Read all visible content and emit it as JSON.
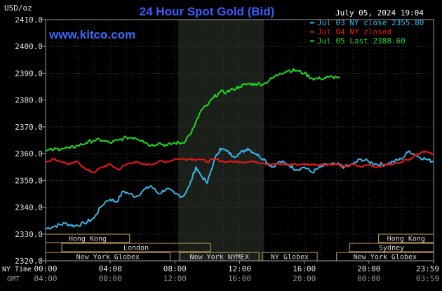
{
  "chart_data": {
    "type": "line",
    "title": "24 Hour Spot Gold (Bid)",
    "site": "www.kitco.com",
    "date_stamp": "July 05, 2024 19:04",
    "y_unit": "USD/oz",
    "ylim": [
      2320,
      2410
    ],
    "y_ticks": [
      "2410.0",
      "2400.0",
      "2390.0",
      "2380.0",
      "2370.0",
      "2360.0",
      "2350.0",
      "2340.0",
      "2330.0",
      "2320.0"
    ],
    "x_range_hours": [
      0,
      24
    ],
    "x_ticks_ny": [
      "00:00",
      "04:00",
      "08:00",
      "12:00",
      "16:00",
      "20:00",
      "23:59"
    ],
    "x_ticks_gmt": [
      "04:00",
      "08:00",
      "12:00",
      "16:00",
      "20:00",
      "00:00",
      "03:59"
    ],
    "x_tick_hours": [
      0,
      4,
      8,
      12,
      16,
      20,
      24
    ],
    "tz_labels": {
      "ny": "NY Time",
      "gmt": "GMT"
    },
    "grid": true,
    "legend_position": "top-right",
    "highlight_hours": [
      8.2,
      13.5
    ],
    "series": [
      {
        "name": "Jul 03 NY close 2355.80",
        "color": "#38b6e8",
        "x": [
          0,
          0.6,
          1.2,
          1.8,
          2.4,
          3.0,
          3.4,
          3.7,
          4.0,
          4.4,
          4.8,
          5.2,
          5.6,
          6.0,
          6.5,
          7.0,
          7.5,
          8.0,
          8.5,
          8.9,
          9.3,
          9.6,
          10.0,
          10.4,
          10.8,
          11.2,
          11.6,
          12.0,
          12.5,
          13.0,
          13.5,
          14.0,
          14.5,
          15.0,
          15.5,
          16.0,
          16.5,
          17.0,
          17.5,
          18.0,
          18.5,
          19.0,
          19.5,
          20.0,
          20.5,
          21.0,
          21.5,
          22.0,
          22.5,
          23.0,
          23.5,
          24.0
        ],
        "values": [
          2332,
          2333,
          2334,
          2333,
          2334,
          2336,
          2340,
          2342,
          2343,
          2342,
          2346,
          2345,
          2344,
          2346,
          2348,
          2345,
          2347,
          2345,
          2344,
          2348,
          2355,
          2352,
          2349,
          2357,
          2362,
          2361,
          2359,
          2360,
          2362,
          2360,
          2358,
          2355,
          2357,
          2356,
          2354,
          2355,
          2353,
          2355,
          2356,
          2356,
          2355,
          2356,
          2358,
          2357,
          2356,
          2356,
          2357,
          2358,
          2361,
          2359,
          2358,
          2357
        ]
      },
      {
        "name": "Jul 04 NY closed",
        "color": "#e81818",
        "x": [
          0,
          0.5,
          1.0,
          1.5,
          2.0,
          2.5,
          3.0,
          3.5,
          4.0,
          4.5,
          5.0,
          5.5,
          6.0,
          6.5,
          7.0,
          7.5,
          8.0,
          8.5,
          9.0,
          9.5,
          10.0,
          10.5,
          11.0,
          11.5,
          12.0,
          12.5,
          13.0,
          13.5,
          14.0,
          14.5,
          15.0,
          15.5,
          16.0,
          16.5,
          17.0,
          17.5,
          18.0,
          18.5,
          19.0,
          19.5,
          20.0,
          20.5,
          21.0,
          21.5,
          22.0,
          22.5,
          23.0,
          23.5,
          24.0
        ],
        "values": [
          2357,
          2358,
          2357,
          2356,
          2357,
          2354,
          2353,
          2355,
          2356,
          2354,
          2356,
          2357,
          2356,
          2356,
          2357,
          2357,
          2358,
          2358,
          2358,
          2358,
          2357,
          2358,
          2357,
          2357,
          2357,
          2357,
          2357,
          2356.5,
          2356,
          2356,
          2356,
          2356,
          2356,
          2356,
          2356,
          2356,
          2356,
          2355,
          2356,
          2355,
          2356,
          2355,
          2356,
          2356,
          2357,
          2358,
          2360,
          2361,
          2360
        ]
      },
      {
        "name": "Jul 05 Last 2388.60",
        "color": "#1ed81e",
        "x": [
          0,
          0.5,
          1.0,
          1.5,
          2.0,
          2.5,
          3.0,
          3.5,
          4.0,
          4.5,
          5.0,
          5.5,
          6.0,
          6.5,
          7.0,
          7.5,
          8.0,
          8.5,
          8.9,
          9.2,
          9.6,
          10.0,
          10.4,
          10.8,
          11.2,
          11.6,
          12.0,
          12.5,
          13.0,
          13.5,
          14.0,
          14.5,
          15.0,
          15.5,
          16.0,
          16.5,
          17.0,
          17.5,
          18.0,
          18.2
        ],
        "values": [
          2361,
          2361.5,
          2362,
          2362,
          2363,
          2364,
          2365,
          2365,
          2364,
          2365,
          2366,
          2366,
          2365,
          2363,
          2364,
          2363,
          2364,
          2364,
          2367,
          2370,
          2376,
          2378,
          2381,
          2383,
          2383,
          2384,
          2385,
          2386,
          2386,
          2386,
          2388,
          2390,
          2391,
          2391,
          2390,
          2388,
          2388,
          2388.5,
          2388.6,
          2388.6
        ]
      }
    ],
    "sessions": [
      {
        "label": "Hong Kong",
        "start": 0,
        "end": 5.2,
        "row": 0
      },
      {
        "label": "London",
        "start": 1.0,
        "end": 10.2,
        "row": 1
      },
      {
        "label": "New York Globex",
        "start": 0,
        "end": 7.7,
        "row": 2
      },
      {
        "label": "New York NYMEX",
        "start": 8.3,
        "end": 13.2,
        "row": 2
      },
      {
        "label": "NY Globex",
        "start": 13.4,
        "end": 16.8,
        "row": 2
      },
      {
        "label": "Hong Kong",
        "start": 20.6,
        "end": 24,
        "row": 0
      },
      {
        "label": "Sydney",
        "start": 18.8,
        "end": 24,
        "row": 1
      },
      {
        "label": "New York Globex",
        "start": 18.0,
        "end": 24,
        "row": 2
      }
    ]
  }
}
